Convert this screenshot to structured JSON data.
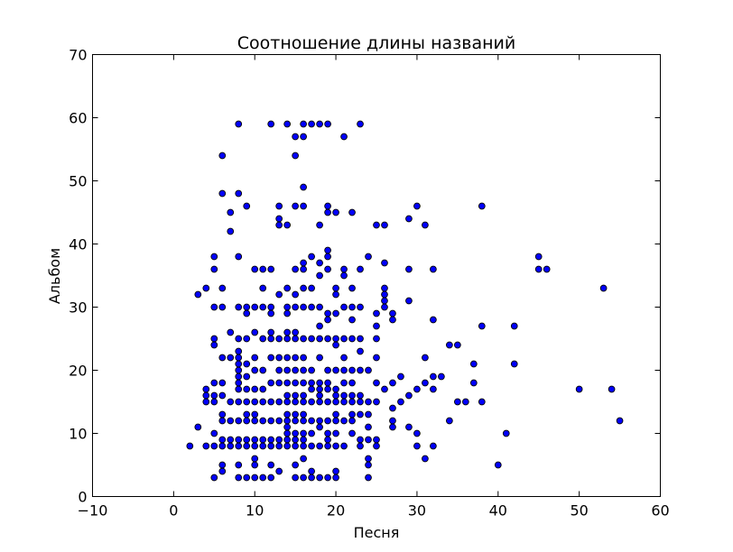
{
  "chart_data": {
    "type": "scatter",
    "title": "Соотношение длины названий",
    "xlabel": "Песня",
    "ylabel": "Альбом",
    "xlim": [
      -10,
      60
    ],
    "ylim": [
      0,
      70
    ],
    "xticks": [
      "−10",
      "0",
      "10",
      "20",
      "30",
      "40",
      "50",
      "60"
    ],
    "yticks": [
      "0",
      "10",
      "20",
      "30",
      "40",
      "50",
      "60",
      "70"
    ],
    "grid": false,
    "legend": "none",
    "marker_color": "#0000ff",
    "marker_edge": "#000000",
    "points": [
      [
        2,
        8
      ],
      [
        3,
        11
      ],
      [
        3,
        32
      ],
      [
        4,
        33
      ],
      [
        4,
        17
      ],
      [
        4,
        16
      ],
      [
        4,
        15
      ],
      [
        4,
        8
      ],
      [
        5,
        38
      ],
      [
        5,
        36
      ],
      [
        5,
        30
      ],
      [
        5,
        25
      ],
      [
        5,
        24
      ],
      [
        5,
        18
      ],
      [
        5,
        16
      ],
      [
        5,
        15
      ],
      [
        5,
        10
      ],
      [
        5,
        8
      ],
      [
        5,
        3
      ],
      [
        6,
        54
      ],
      [
        6,
        48
      ],
      [
        6,
        33
      ],
      [
        6,
        30
      ],
      [
        6,
        22
      ],
      [
        6,
        18
      ],
      [
        6,
        16
      ],
      [
        6,
        13
      ],
      [
        6,
        12
      ],
      [
        6,
        9
      ],
      [
        6,
        8
      ],
      [
        6,
        5
      ],
      [
        6,
        4
      ],
      [
        7,
        45
      ],
      [
        7,
        42
      ],
      [
        7,
        26
      ],
      [
        7,
        22
      ],
      [
        7,
        15
      ],
      [
        7,
        12
      ],
      [
        7,
        9
      ],
      [
        7,
        8
      ],
      [
        8,
        59
      ],
      [
        8,
        48
      ],
      [
        8,
        38
      ],
      [
        8,
        30
      ],
      [
        8,
        25
      ],
      [
        8,
        23
      ],
      [
        8,
        22
      ],
      [
        8,
        21
      ],
      [
        8,
        20
      ],
      [
        8,
        19
      ],
      [
        8,
        18
      ],
      [
        8,
        17
      ],
      [
        8,
        15
      ],
      [
        8,
        12
      ],
      [
        8,
        9
      ],
      [
        8,
        8
      ],
      [
        8,
        5
      ],
      [
        8,
        3
      ],
      [
        9,
        46
      ],
      [
        9,
        30
      ],
      [
        9,
        29
      ],
      [
        9,
        25
      ],
      [
        9,
        21
      ],
      [
        9,
        19
      ],
      [
        9,
        17
      ],
      [
        9,
        15
      ],
      [
        9,
        13
      ],
      [
        9,
        12
      ],
      [
        9,
        9
      ],
      [
        9,
        8
      ],
      [
        9,
        3
      ],
      [
        10,
        36
      ],
      [
        10,
        30
      ],
      [
        10,
        26
      ],
      [
        10,
        22
      ],
      [
        10,
        20
      ],
      [
        10,
        17
      ],
      [
        10,
        15
      ],
      [
        10,
        13
      ],
      [
        10,
        12
      ],
      [
        10,
        9
      ],
      [
        10,
        8
      ],
      [
        10,
        6
      ],
      [
        10,
        5
      ],
      [
        10,
        3
      ],
      [
        11,
        36
      ],
      [
        11,
        33
      ],
      [
        11,
        30
      ],
      [
        11,
        25
      ],
      [
        11,
        20
      ],
      [
        11,
        17
      ],
      [
        11,
        15
      ],
      [
        11,
        12
      ],
      [
        11,
        9
      ],
      [
        11,
        8
      ],
      [
        11,
        3
      ],
      [
        12,
        59
      ],
      [
        12,
        36
      ],
      [
        12,
        30
      ],
      [
        12,
        29
      ],
      [
        12,
        26
      ],
      [
        12,
        25
      ],
      [
        12,
        22
      ],
      [
        12,
        18
      ],
      [
        12,
        15
      ],
      [
        12,
        12
      ],
      [
        12,
        9
      ],
      [
        12,
        8
      ],
      [
        12,
        5
      ],
      [
        12,
        3
      ],
      [
        13,
        46
      ],
      [
        13,
        44
      ],
      [
        13,
        43
      ],
      [
        13,
        32
      ],
      [
        13,
        25
      ],
      [
        13,
        22
      ],
      [
        13,
        20
      ],
      [
        13,
        18
      ],
      [
        13,
        15
      ],
      [
        13,
        12
      ],
      [
        13,
        9
      ],
      [
        13,
        8
      ],
      [
        13,
        4
      ],
      [
        14,
        59
      ],
      [
        14,
        43
      ],
      [
        14,
        33
      ],
      [
        14,
        30
      ],
      [
        14,
        29
      ],
      [
        14,
        26
      ],
      [
        14,
        25
      ],
      [
        14,
        22
      ],
      [
        14,
        20
      ],
      [
        14,
        18
      ],
      [
        14,
        16
      ],
      [
        14,
        15
      ],
      [
        14,
        13
      ],
      [
        14,
        12
      ],
      [
        14,
        11
      ],
      [
        14,
        10
      ],
      [
        14,
        9
      ],
      [
        14,
        8
      ],
      [
        15,
        57
      ],
      [
        15,
        54
      ],
      [
        15,
        46
      ],
      [
        15,
        36
      ],
      [
        15,
        32
      ],
      [
        15,
        30
      ],
      [
        15,
        26
      ],
      [
        15,
        25
      ],
      [
        15,
        22
      ],
      [
        15,
        20
      ],
      [
        15,
        18
      ],
      [
        15,
        16
      ],
      [
        15,
        15
      ],
      [
        15,
        13
      ],
      [
        15,
        12
      ],
      [
        15,
        10
      ],
      [
        15,
        9
      ],
      [
        15,
        8
      ],
      [
        15,
        5
      ],
      [
        15,
        3
      ],
      [
        16,
        59
      ],
      [
        16,
        57
      ],
      [
        16,
        49
      ],
      [
        16,
        46
      ],
      [
        16,
        37
      ],
      [
        16,
        36
      ],
      [
        16,
        33
      ],
      [
        16,
        30
      ],
      [
        16,
        25
      ],
      [
        16,
        22
      ],
      [
        16,
        20
      ],
      [
        16,
        18
      ],
      [
        16,
        16
      ],
      [
        16,
        15
      ],
      [
        16,
        13
      ],
      [
        16,
        12
      ],
      [
        16,
        10
      ],
      [
        16,
        9
      ],
      [
        16,
        8
      ],
      [
        16,
        6
      ],
      [
        16,
        3
      ],
      [
        17,
        59
      ],
      [
        17,
        38
      ],
      [
        17,
        33
      ],
      [
        17,
        30
      ],
      [
        17,
        25
      ],
      [
        17,
        20
      ],
      [
        17,
        18
      ],
      [
        17,
        17
      ],
      [
        17,
        15
      ],
      [
        17,
        12
      ],
      [
        17,
        10
      ],
      [
        17,
        8
      ],
      [
        17,
        4
      ],
      [
        17,
        3
      ],
      [
        18,
        59
      ],
      [
        18,
        43
      ],
      [
        18,
        37
      ],
      [
        18,
        35
      ],
      [
        18,
        30
      ],
      [
        18,
        27
      ],
      [
        18,
        25
      ],
      [
        18,
        22
      ],
      [
        18,
        18
      ],
      [
        18,
        17
      ],
      [
        18,
        16
      ],
      [
        18,
        15
      ],
      [
        18,
        12
      ],
      [
        18,
        11
      ],
      [
        18,
        8
      ],
      [
        18,
        3
      ],
      [
        19,
        59
      ],
      [
        19,
        46
      ],
      [
        19,
        45
      ],
      [
        19,
        39
      ],
      [
        19,
        38
      ],
      [
        19,
        36
      ],
      [
        19,
        29
      ],
      [
        19,
        28
      ],
      [
        19,
        25
      ],
      [
        19,
        20
      ],
      [
        19,
        18
      ],
      [
        19,
        17
      ],
      [
        19,
        15
      ],
      [
        19,
        12
      ],
      [
        19,
        10
      ],
      [
        19,
        9
      ],
      [
        19,
        8
      ],
      [
        19,
        3
      ],
      [
        20,
        45
      ],
      [
        20,
        33
      ],
      [
        20,
        32
      ],
      [
        20,
        29
      ],
      [
        20,
        25
      ],
      [
        20,
        24
      ],
      [
        20,
        20
      ],
      [
        20,
        17
      ],
      [
        20,
        16
      ],
      [
        20,
        15
      ],
      [
        20,
        13
      ],
      [
        20,
        12
      ],
      [
        20,
        10
      ],
      [
        20,
        8
      ],
      [
        20,
        4
      ],
      [
        20,
        3
      ],
      [
        21,
        57
      ],
      [
        21,
        36
      ],
      [
        21,
        35
      ],
      [
        21,
        30
      ],
      [
        21,
        25
      ],
      [
        21,
        22
      ],
      [
        21,
        20
      ],
      [
        21,
        18
      ],
      [
        21,
        16
      ],
      [
        21,
        15
      ],
      [
        21,
        12
      ],
      [
        21,
        8
      ],
      [
        22,
        45
      ],
      [
        22,
        33
      ],
      [
        22,
        30
      ],
      [
        22,
        28
      ],
      [
        22,
        25
      ],
      [
        22,
        20
      ],
      [
        22,
        18
      ],
      [
        22,
        16
      ],
      [
        22,
        15
      ],
      [
        22,
        13
      ],
      [
        22,
        12
      ],
      [
        22,
        10
      ],
      [
        23,
        59
      ],
      [
        23,
        36
      ],
      [
        23,
        30
      ],
      [
        23,
        25
      ],
      [
        23,
        23
      ],
      [
        23,
        20
      ],
      [
        23,
        16
      ],
      [
        23,
        15
      ],
      [
        23,
        13
      ],
      [
        23,
        9
      ],
      [
        23,
        8
      ],
      [
        24,
        38
      ],
      [
        24,
        20
      ],
      [
        24,
        15
      ],
      [
        24,
        13
      ],
      [
        24,
        11
      ],
      [
        24,
        9
      ],
      [
        24,
        6
      ],
      [
        24,
        5
      ],
      [
        24,
        3
      ],
      [
        25,
        43
      ],
      [
        25,
        29
      ],
      [
        25,
        27
      ],
      [
        25,
        25
      ],
      [
        25,
        22
      ],
      [
        25,
        18
      ],
      [
        25,
        15
      ],
      [
        25,
        9
      ],
      [
        25,
        8
      ],
      [
        26,
        43
      ],
      [
        26,
        37
      ],
      [
        26,
        33
      ],
      [
        26,
        32
      ],
      [
        26,
        31
      ],
      [
        26,
        30
      ],
      [
        26,
        17
      ],
      [
        27,
        29
      ],
      [
        27,
        28
      ],
      [
        27,
        18
      ],
      [
        27,
        14
      ],
      [
        27,
        12
      ],
      [
        27,
        11
      ],
      [
        28,
        19
      ],
      [
        28,
        15
      ],
      [
        29,
        44
      ],
      [
        29,
        36
      ],
      [
        29,
        31
      ],
      [
        29,
        16
      ],
      [
        29,
        11
      ],
      [
        30,
        46
      ],
      [
        30,
        17
      ],
      [
        30,
        10
      ],
      [
        30,
        8
      ],
      [
        31,
        43
      ],
      [
        31,
        22
      ],
      [
        31,
        18
      ],
      [
        31,
        6
      ],
      [
        32,
        36
      ],
      [
        32,
        28
      ],
      [
        32,
        19
      ],
      [
        32,
        17
      ],
      [
        32,
        8
      ],
      [
        33,
        19
      ],
      [
        34,
        24
      ],
      [
        34,
        12
      ],
      [
        35,
        24
      ],
      [
        35,
        15
      ],
      [
        36,
        15
      ],
      [
        37,
        21
      ],
      [
        37,
        18
      ],
      [
        38,
        46
      ],
      [
        38,
        27
      ],
      [
        38,
        15
      ],
      [
        40,
        5
      ],
      [
        41,
        10
      ],
      [
        42,
        27
      ],
      [
        42,
        21
      ],
      [
        45,
        38
      ],
      [
        45,
        36
      ],
      [
        46,
        36
      ],
      [
        50,
        17
      ],
      [
        53,
        33
      ],
      [
        54,
        17
      ],
      [
        55,
        12
      ]
    ]
  }
}
